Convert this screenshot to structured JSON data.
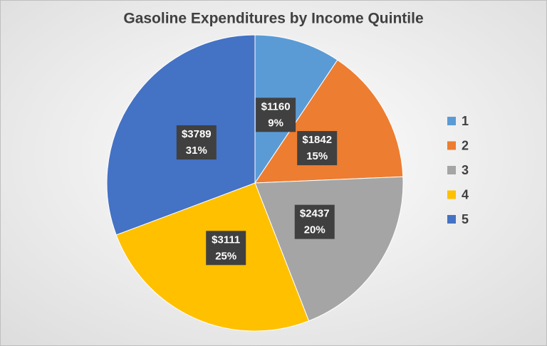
{
  "chart_data": {
    "type": "pie",
    "title": "Gasoline Expenditures by Income Quintile",
    "categories": [
      "1",
      "2",
      "3",
      "4",
      "5"
    ],
    "values": [
      1160,
      1842,
      2437,
      3111,
      3789
    ],
    "value_labels": [
      "$1160",
      "$1842",
      "$2437",
      "$3111",
      "$3789"
    ],
    "percent_labels": [
      "9%",
      "15%",
      "20%",
      "25%",
      "31%"
    ],
    "colors": [
      "#5b9bd5",
      "#ed7d31",
      "#a5a5a5",
      "#ffc000",
      "#4472c4"
    ],
    "legend": "right"
  }
}
